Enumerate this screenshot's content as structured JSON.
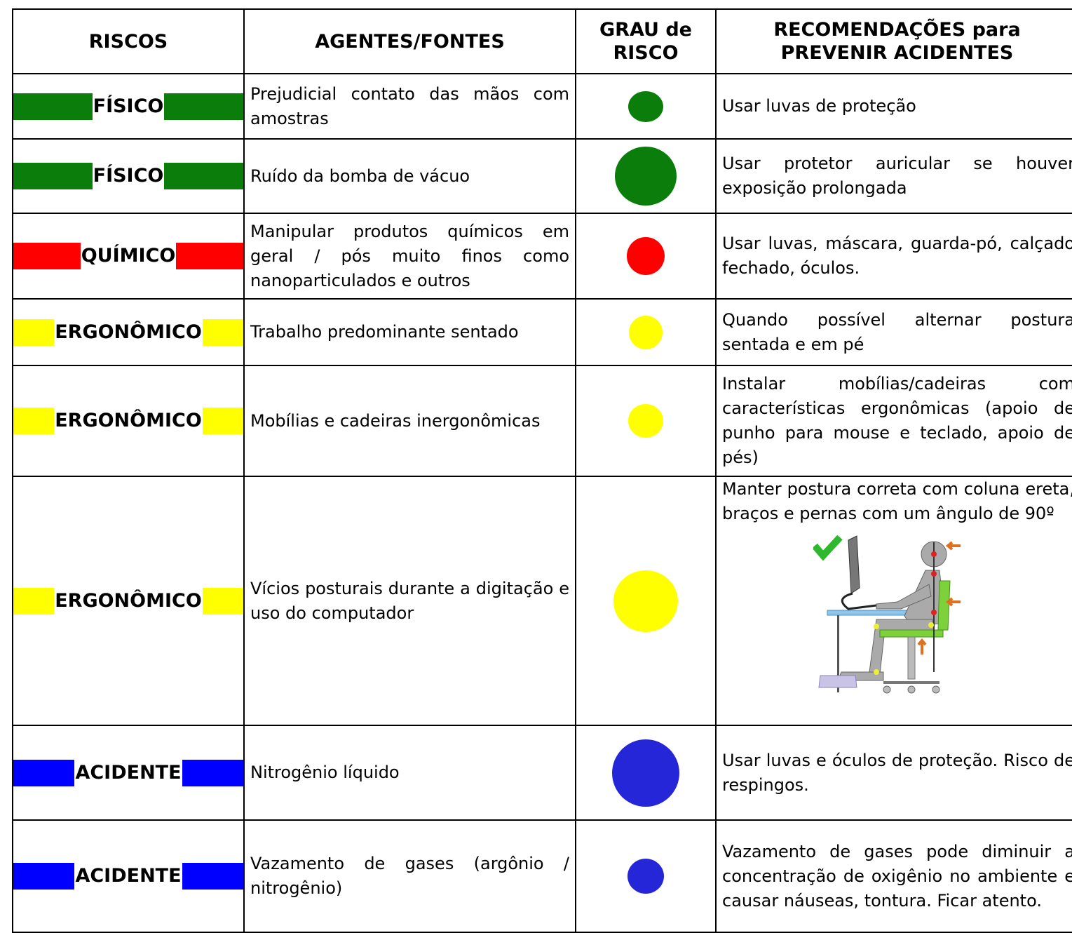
{
  "table": {
    "header": [
      "RISCOS",
      "AGENTES/FONTES",
      "GRAU de RISCO",
      "RECOMENDAÇÕES para PREVENIR ACIDENTES"
    ],
    "rows": [
      {
        "risk": "FÍSICO",
        "agent": "Prejudicial contato das mãos com amostras",
        "recommendation": "Usar luvas de proteção"
      },
      {
        "risk": "FÍSICO",
        "agent": "Ruído da bomba de vácuo",
        "recommendation": "Usar protetor auricular se houver exposição prolongada"
      },
      {
        "risk": "QUÍMICO",
        "agent": "Manipular produtos químicos em geral / pós muito finos como nanoparticulados e outros",
        "recommendation": "Usar luvas, máscara, guarda-pó, calçado fechado, óculos."
      },
      {
        "risk": "ERGONÔMICO",
        "agent": "Trabalho predominante sentado",
        "recommendation": "Quando possível alternar postura sentada e em pé"
      },
      {
        "risk": "ERGONÔMICO",
        "agent": "Mobílias e cadeiras inergonômicas",
        "recommendation": "Instalar mobílias/cadeiras com características ergonômicas (apoio de punho para mouse e teclado, apoio de pés)"
      },
      {
        "risk": "ERGONÔMICO",
        "agent": "Vícios posturais durante a digitação e uso do computador",
        "recommendation": "Manter postura correta com coluna ereta, braços e pernas com um ângulo de 90º"
      },
      {
        "risk": "ACIDENTE",
        "agent": "Nitrogênio líquido",
        "recommendation": "Usar luvas e óculos de proteção. Risco de respingos."
      },
      {
        "risk": "ACIDENTE",
        "agent": "Vazamento de gases (argônio / nitrogênio)",
        "recommendation": "Vazamento de gases pode diminuir a concentração de oxigênio no ambiente e causar náuseas, tontura. Ficar atento."
      }
    ]
  }
}
